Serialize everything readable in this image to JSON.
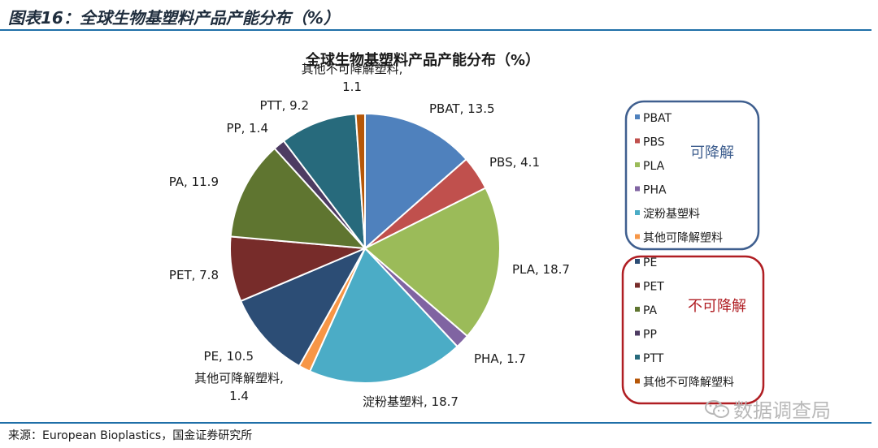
{
  "header": {
    "title": "图表16：全球生物基塑料产品产能分布（%）"
  },
  "footer": {
    "source": "来源：European Bioplastics，国金证券研究所"
  },
  "watermark": {
    "text": "数据调查局"
  },
  "colors": {
    "rule": "#1f6fa8",
    "group_degradable": "#3f5f8f",
    "group_nondegradable": "#b01e23"
  },
  "chart_data": {
    "type": "pie",
    "title": "全球生物基塑料产品产能分布（%）",
    "slices": [
      {
        "name": "PBAT",
        "value": 13.5,
        "color": "#4f81bd",
        "label": "PBAT, 13.5"
      },
      {
        "name": "PBS",
        "value": 4.1,
        "color": "#c0504d",
        "label": "PBS, 4.1"
      },
      {
        "name": "PLA",
        "value": 18.7,
        "color": "#9bbb59",
        "label": "PLA, 18.7"
      },
      {
        "name": "PHA",
        "value": 1.7,
        "color": "#8064a2",
        "label": "PHA, 1.7"
      },
      {
        "name": "淀粉基塑料",
        "value": 18.7,
        "color": "#4bacc6",
        "label": "淀粉基塑料, 18.7"
      },
      {
        "name": "其他可降解塑料",
        "value": 1.4,
        "color": "#f79646",
        "label": [
          "其他可降解塑料,",
          "1.4"
        ]
      },
      {
        "name": "PE",
        "value": 10.5,
        "color": "#2c4d75",
        "label": "PE, 10.5"
      },
      {
        "name": "PET",
        "value": 7.8,
        "color": "#772c2a",
        "label": "PET, 7.8"
      },
      {
        "name": "PA",
        "value": 11.9,
        "color": "#5f7530",
        "label": "PA, 11.9"
      },
      {
        "name": "PP",
        "value": 1.4,
        "color": "#4d3b62",
        "label": "PP, 1.4"
      },
      {
        "name": "PTT",
        "value": 9.2,
        "color": "#276a7c",
        "label": "PTT, 9.2"
      },
      {
        "name": "其他不可降解塑料",
        "value": 1.1,
        "color": "#b65708",
        "label": [
          "其他不可降解塑料,",
          "1.1"
        ]
      }
    ],
    "legend": {
      "position": "right",
      "groups": [
        {
          "title": "可降解",
          "items": [
            "PBAT",
            "PBS",
            "PLA",
            "PHA",
            "淀粉基塑料",
            "其他可降解塑料"
          ]
        },
        {
          "title": "不可降解",
          "items": [
            "PE",
            "PET",
            "PA",
            "PP",
            "PTT",
            "其他不可降解塑料"
          ]
        }
      ]
    }
  }
}
